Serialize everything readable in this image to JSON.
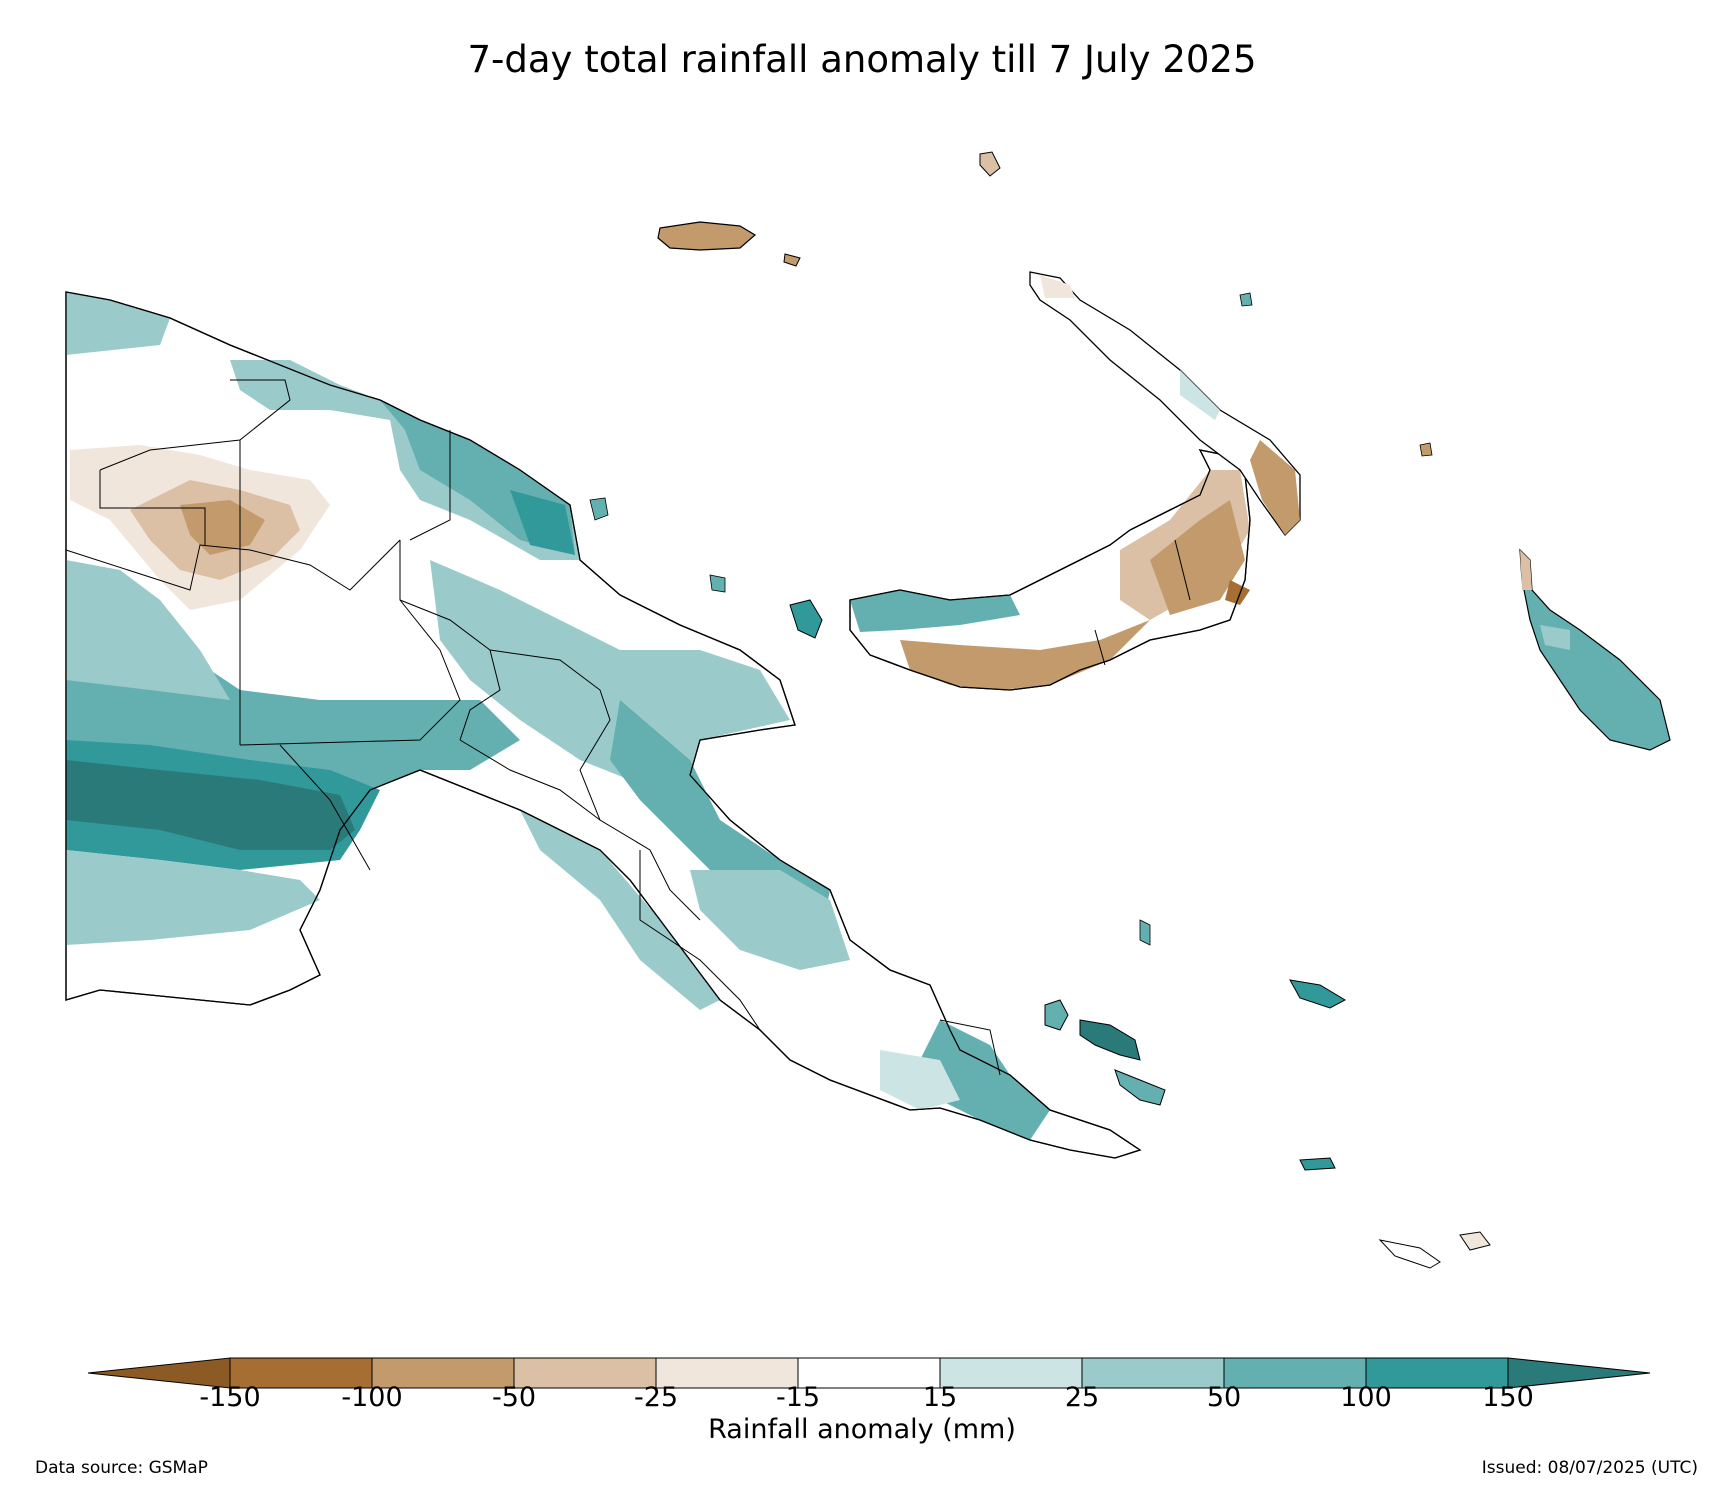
{
  "title": "7-day total rainfall anomaly till 7 July 2025",
  "map": {
    "region": "Papua New Guinea",
    "variable": "7-day total rainfall anomaly",
    "unit": "mm"
  },
  "colorbar": {
    "label": "Rainfall anomaly (mm)",
    "ticks": [
      "-150",
      "-100",
      "-50",
      "-25",
      "-15",
      "15",
      "25",
      "50",
      "100",
      "150"
    ],
    "colors": [
      "#a66e32",
      "#c29a6c",
      "#dbc0a6",
      "#f1e6dc",
      "#ffffff",
      "#cce4e3",
      "#9acbca",
      "#64b0b0",
      "#31999a"
    ],
    "extend_low_color": "#8c5a25",
    "extend_high_color": "#2a7a7a"
  },
  "footer": {
    "source": "Data source: GSMaP",
    "issued": "Issued: 08/07/2025 (UTC)"
  }
}
